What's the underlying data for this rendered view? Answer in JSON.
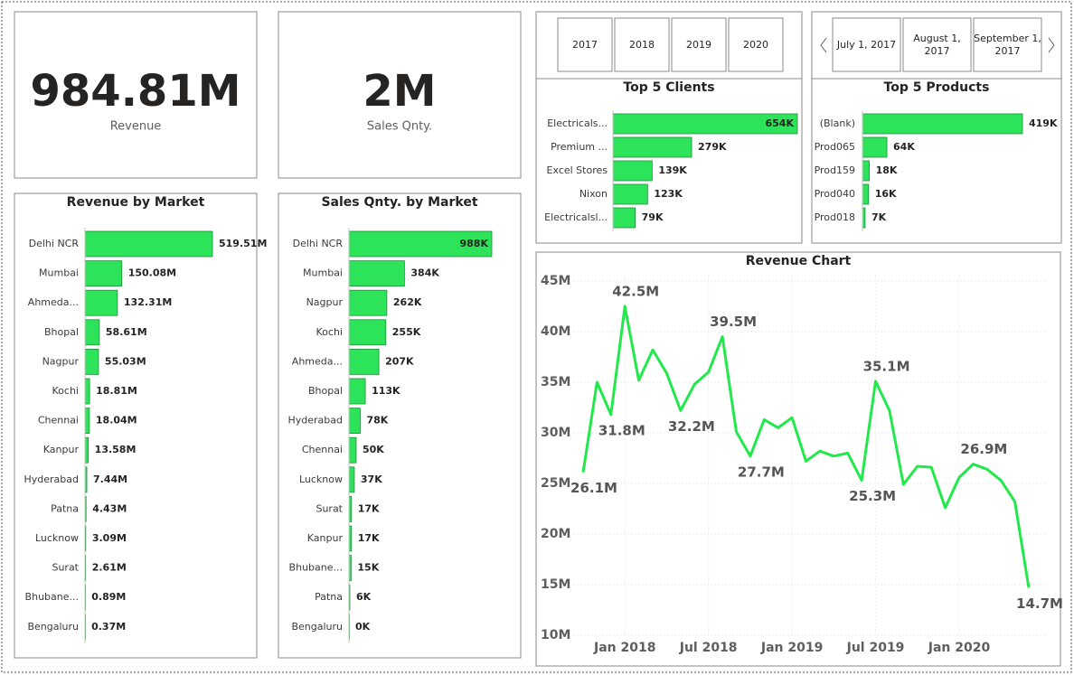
{
  "cards": [
    {
      "value": "984.81M",
      "label": "Revenue"
    },
    {
      "value": "2M",
      "label": "Sales Qnty."
    }
  ],
  "year_slicer": [
    "2017",
    "2018",
    "2019",
    "2020"
  ],
  "date_slicer": [
    "July 1, 2017",
    "August 1, 2017",
    "September 1, 2017"
  ],
  "chart_data": [
    {
      "type": "hbar",
      "title": "Top 5 Clients",
      "color": "#2de35a",
      "categories": [
        "Electricals...",
        "Premium ...",
        "Excel Stores",
        "Nixon",
        "Electricalsl..."
      ],
      "values": [
        654,
        279,
        139,
        123,
        79
      ],
      "value_labels": [
        "654K",
        "279K",
        "139K",
        "123K",
        "79K"
      ]
    },
    {
      "type": "hbar",
      "title": "Top 5 Products",
      "color": "#2de35a",
      "categories": [
        "(Blank)",
        "Prod065",
        "Prod159",
        "Prod040",
        "Prod018"
      ],
      "values": [
        419,
        64,
        18,
        16,
        7
      ],
      "value_labels": [
        "419K",
        "64K",
        "18K",
        "16K",
        "7K"
      ]
    },
    {
      "type": "hbar",
      "title": "Revenue by Market",
      "color": "#2de35a",
      "categories": [
        "Delhi NCR",
        "Mumbai",
        "Ahmeda...",
        "Bhopal",
        "Nagpur",
        "Kochi",
        "Chennai",
        "Kanpur",
        "Hyderabad",
        "Patna",
        "Lucknow",
        "Surat",
        "Bhubane...",
        "Bengaluru"
      ],
      "values": [
        519.51,
        150.08,
        132.31,
        58.61,
        55.03,
        18.81,
        18.04,
        13.58,
        7.44,
        4.43,
        3.09,
        2.61,
        0.89,
        0.37
      ],
      "value_labels": [
        "519.51M",
        "150.08M",
        "132.31M",
        "58.61M",
        "55.03M",
        "18.81M",
        "18.04M",
        "13.58M",
        "7.44M",
        "4.43M",
        "3.09M",
        "2.61M",
        "0.89M",
        "0.37M"
      ]
    },
    {
      "type": "hbar",
      "title": "Sales Qnty. by Market",
      "color": "#2de35a",
      "categories": [
        "Delhi NCR",
        "Mumbai",
        "Nagpur",
        "Kochi",
        "Ahmeda...",
        "Bhopal",
        "Hyderabad",
        "Chennai",
        "Lucknow",
        "Surat",
        "Kanpur",
        "Bhubane...",
        "Patna",
        "Bengaluru"
      ],
      "values": [
        988,
        384,
        262,
        255,
        207,
        113,
        78,
        50,
        37,
        17,
        17,
        15,
        6,
        0
      ],
      "value_labels": [
        "988K",
        "384K",
        "262K",
        "255K",
        "207K",
        "113K",
        "78K",
        "50K",
        "37K",
        "17K",
        "17K",
        "15K",
        "6K",
        "0K"
      ]
    },
    {
      "type": "line",
      "title": "Revenue Chart",
      "color": "#22e84b",
      "grid": true,
      "x": [
        "2017-10",
        "2017-11",
        "2017-12",
        "2018-01",
        "2018-02",
        "2018-03",
        "2018-04",
        "2018-05",
        "2018-06",
        "2018-07",
        "2018-08",
        "2018-09",
        "2018-10",
        "2018-11",
        "2018-12",
        "2019-01",
        "2019-02",
        "2019-03",
        "2019-04",
        "2019-05",
        "2019-06",
        "2019-07",
        "2019-08",
        "2019-09",
        "2019-10",
        "2019-11",
        "2019-12",
        "2020-01",
        "2020-02",
        "2020-03",
        "2020-04",
        "2020-05",
        "2020-06"
      ],
      "values": [
        26.1,
        35.0,
        31.8,
        42.5,
        35.2,
        38.2,
        35.9,
        32.2,
        34.8,
        36.0,
        39.5,
        30.1,
        27.7,
        31.3,
        30.5,
        31.5,
        27.2,
        28.2,
        27.7,
        28.0,
        25.3,
        35.1,
        32.2,
        24.9,
        26.7,
        26.6,
        22.6,
        25.6,
        26.9,
        26.4,
        25.3,
        23.2,
        14.7
      ],
      "value_labels": [
        "26.1M",
        null,
        "31.8M",
        "42.5M",
        null,
        null,
        null,
        "32.2M",
        null,
        null,
        "39.5M",
        null,
        "27.7M",
        null,
        null,
        null,
        null,
        null,
        null,
        null,
        "25.3M",
        "35.1M",
        null,
        null,
        null,
        null,
        null,
        null,
        "26.9M",
        null,
        null,
        null,
        "14.7M"
      ],
      "ylim": [
        10,
        45
      ],
      "yticks": [
        {
          "value": 10,
          "label": "10M"
        },
        {
          "value": 15,
          "label": "15M"
        },
        {
          "value": 20,
          "label": "20M"
        },
        {
          "value": 25,
          "label": "25M"
        },
        {
          "value": 30,
          "label": "30M"
        },
        {
          "value": 35,
          "label": "35M"
        },
        {
          "value": 40,
          "label": "40M"
        },
        {
          "value": 45,
          "label": "45M"
        }
      ],
      "xticks": [
        {
          "value": "2018-01",
          "label": "Jan 2018"
        },
        {
          "value": "2018-07",
          "label": "Jul 2018"
        },
        {
          "value": "2019-01",
          "label": "Jan 2019"
        },
        {
          "value": "2019-07",
          "label": "Jul 2019"
        },
        {
          "value": "2020-01",
          "label": "Jan 2020"
        }
      ]
    }
  ]
}
